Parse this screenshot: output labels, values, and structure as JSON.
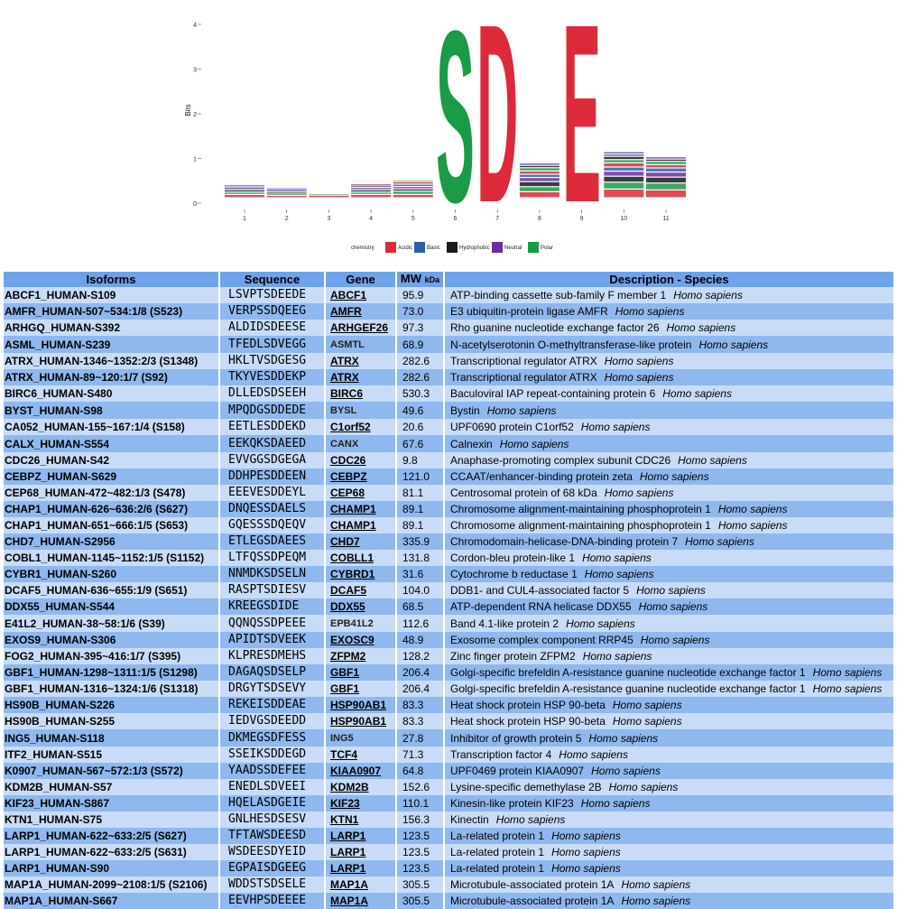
{
  "logo": {
    "y_axis_label": "Bits",
    "y_ticks": [
      "0",
      "1",
      "2",
      "3",
      "4"
    ],
    "x_ticks": [
      "1",
      "2",
      "3",
      "4",
      "5",
      "6",
      "7",
      "8",
      "9",
      "10",
      "11"
    ],
    "big_letters": [
      {
        "position": 6,
        "letter": "S",
        "bits": 3.95,
        "color": "#1a9b47"
      },
      {
        "position": 7,
        "letter": "D",
        "bits": 4.1,
        "color": "#dc2a3a"
      },
      {
        "position": 9,
        "letter": "E",
        "bits": 4.1,
        "color": "#dc2a3a"
      }
    ],
    "legend": {
      "title": "chemistry",
      "items": [
        {
          "label": "Acidic",
          "color": "#dc2a3a"
        },
        {
          "label": "Basic",
          "color": "#2a62a8"
        },
        {
          "label": "Hydrophobic",
          "color": "#1a1a1a"
        },
        {
          "label": "Neutral",
          "color": "#6a2ea0"
        },
        {
          "label": "Polar",
          "color": "#1a9b47"
        }
      ]
    }
  },
  "table": {
    "headers": {
      "isoforms": "Isoforms",
      "sequence": "Sequence",
      "gene": "Gene",
      "mw": "MW",
      "mw_unit": "kDa",
      "description": "Description - Species"
    },
    "rows": [
      {
        "iso": "ABCF1_HUMAN-S109",
        "seq": "LSVPTSDEEDE",
        "gene": "ABCF1",
        "link": true,
        "mw": "95.9",
        "desc": "ATP-binding cassette sub-family F member 1",
        "species": "Homo sapiens"
      },
      {
        "iso": "AMFR_HUMAN-507~534:1/8 (S523)",
        "seq": "VERPSSDQEEG",
        "gene": "AMFR",
        "link": true,
        "mw": "73.0",
        "desc": "E3 ubiquitin-protein ligase AMFR",
        "species": "Homo sapiens"
      },
      {
        "iso": "ARHGQ_HUMAN-S392",
        "seq": "ALDIDSDEESE",
        "gene": "ARHGEF26",
        "link": true,
        "mw": "97.3",
        "desc": "Rho guanine nucleotide exchange factor 26",
        "species": "Homo sapiens"
      },
      {
        "iso": "ASML_HUMAN-S239",
        "seq": "TFEDLSDVEGG",
        "gene": "ASMTL",
        "link": false,
        "mw": "68.9",
        "desc": "N-acetylserotonin O-methyltransferase-like protein",
        "species": "Homo sapiens"
      },
      {
        "iso": "ATRX_HUMAN-1346~1352:2/3 (S1348)",
        "seq": "HKLTVSDGESG",
        "gene": "ATRX",
        "link": true,
        "mw": "282.6",
        "desc": "Transcriptional regulator ATRX",
        "species": "Homo sapiens"
      },
      {
        "iso": "ATRX_HUMAN-89~120:1/7 (S92)",
        "seq": "TKYVESDDEKP",
        "gene": "ATRX",
        "link": true,
        "mw": "282.6",
        "desc": "Transcriptional regulator ATRX",
        "species": "Homo sapiens"
      },
      {
        "iso": "BIRC6_HUMAN-S480",
        "seq": "DLLEDSDSEEH",
        "gene": "BIRC6",
        "link": true,
        "mw": "530.3",
        "desc": "Baculoviral IAP repeat-containing protein 6",
        "species": "Homo sapiens"
      },
      {
        "iso": "BYST_HUMAN-S98",
        "seq": "MPQDGSDDEDE",
        "gene": "BYSL",
        "link": false,
        "mw": "49.6",
        "desc": "Bystin",
        "species": "Homo sapiens"
      },
      {
        "iso": "CA052_HUMAN-155~167:1/4 (S158)",
        "seq": "EETLESDDEKD",
        "gene": "C1orf52",
        "link": true,
        "mw": "20.6",
        "desc": "UPF0690 protein C1orf52",
        "species": "Homo sapiens"
      },
      {
        "iso": "CALX_HUMAN-S554",
        "seq": "EEKQKSDAEED",
        "gene": "CANX",
        "link": false,
        "mw": "67.6",
        "desc": "Calnexin",
        "species": "Homo sapiens"
      },
      {
        "iso": "CDC26_HUMAN-S42",
        "seq": "EVVGGSDGEGA",
        "gene": "CDC26",
        "link": true,
        "mw": "9.8",
        "desc": "Anaphase-promoting complex subunit CDC26",
        "species": "Homo sapiens"
      },
      {
        "iso": "CEBPZ_HUMAN-S629",
        "seq": "DDHPESDDEEN",
        "gene": "CEBPZ",
        "link": true,
        "mw": "121.0",
        "desc": "CCAAT/enhancer-binding protein zeta",
        "species": "Homo sapiens"
      },
      {
        "iso": "CEP68_HUMAN-472~482:1/3 (S478)",
        "seq": "EEEVESDDEYL",
        "gene": "CEP68",
        "link": true,
        "mw": "81.1",
        "desc": "Centrosomal protein of 68 kDa",
        "species": "Homo sapiens"
      },
      {
        "iso": "CHAP1_HUMAN-626~636:2/6 (S627)",
        "seq": "DNQESSDAELS",
        "gene": "CHAMP1",
        "link": true,
        "mw": "89.1",
        "desc": "Chromosome alignment-maintaining phosphoprotein 1",
        "species": "Homo sapiens"
      },
      {
        "iso": "CHAP1_HUMAN-651~666:1/5 (S653)",
        "seq": "GQESSSDQEQV",
        "gene": "CHAMP1",
        "link": true,
        "mw": "89.1",
        "desc": "Chromosome alignment-maintaining phosphoprotein 1",
        "species": "Homo sapiens"
      },
      {
        "iso": "CHD7_HUMAN-S2956",
        "seq": "ETLEGSDAEES",
        "gene": "CHD7",
        "link": true,
        "mw": "335.9",
        "desc": "Chromodomain-helicase-DNA-binding protein 7",
        "species": "Homo sapiens"
      },
      {
        "iso": "COBL1_HUMAN-1145~1152:1/5 (S1152)",
        "seq": "LTFQSSDPEQM",
        "gene": "COBLL1",
        "link": true,
        "mw": "131.8",
        "desc": "Cordon-bleu protein-like 1",
        "species": "Homo sapiens"
      },
      {
        "iso": "CYBR1_HUMAN-S260",
        "seq": "NNMDKSDSELN",
        "gene": "CYBRD1",
        "link": true,
        "mw": "31.6",
        "desc": "Cytochrome b reductase 1",
        "species": "Homo sapiens"
      },
      {
        "iso": "DCAF5_HUMAN-636~655:1/9 (S651)",
        "seq": "RASPTSDIESV",
        "gene": "DCAF5",
        "link": true,
        "mw": "104.0",
        "desc": "DDB1- and CUL4-associated factor 5",
        "species": "Homo sapiens"
      },
      {
        "iso": "DDX55_HUMAN-S544",
        "seq": "KREEGSDIDE",
        "gene": "DDX55",
        "link": true,
        "mw": "68.5",
        "desc": "ATP-dependent RNA helicase DDX55",
        "species": "Homo sapiens"
      },
      {
        "iso": "E41L2_HUMAN-38~58:1/6 (S39)",
        "seq": "QQNQSSDPEEE",
        "gene": "EPB41L2",
        "link": false,
        "mw": "112.6",
        "desc": "Band 4.1-like protein 2",
        "species": "Homo sapiens"
      },
      {
        "iso": "EXOS9_HUMAN-S306",
        "seq": "APIDTSDVEEK",
        "gene": "EXOSC9",
        "link": true,
        "mw": "48.9",
        "desc": "Exosome complex component RRP45",
        "species": "Homo sapiens"
      },
      {
        "iso": "FOG2_HUMAN-395~416:1/7 (S395)",
        "seq": "KLPRESDMEHS",
        "gene": "ZFPM2",
        "link": true,
        "mw": "128.2",
        "desc": "Zinc finger protein ZFPM2",
        "species": "Homo sapiens"
      },
      {
        "iso": "GBF1_HUMAN-1298~1311:1/5 (S1298)",
        "seq": "DAGAQSDSELP",
        "gene": "GBF1",
        "link": true,
        "mw": "206.4",
        "desc": "Golgi-specific brefeldin A-resistance guanine nucleotide exchange factor 1",
        "species": "Homo sapiens"
      },
      {
        "iso": "GBF1_HUMAN-1316~1324:1/6 (S1318)",
        "seq": "DRGYTSDSEVY",
        "gene": "GBF1",
        "link": true,
        "mw": "206.4",
        "desc": "Golgi-specific brefeldin A-resistance guanine nucleotide exchange factor 1",
        "species": "Homo sapiens"
      },
      {
        "iso": "HS90B_HUMAN-S226",
        "seq": "REKEISDDEAE",
        "gene": "HSP90AB1",
        "link": true,
        "mw": "83.3",
        "desc": "Heat shock protein HSP 90-beta",
        "species": "Homo sapiens"
      },
      {
        "iso": "HS90B_HUMAN-S255",
        "seq": "IEDVGSDEEDD",
        "gene": "HSP90AB1",
        "link": true,
        "mw": "83.3",
        "desc": "Heat shock protein HSP 90-beta",
        "species": "Homo sapiens"
      },
      {
        "iso": "ING5_HUMAN-S118",
        "seq": "DKMEGSDFESS",
        "gene": "ING5",
        "link": false,
        "mw": "27.8",
        "desc": "Inhibitor of growth protein 5",
        "species": "Homo sapiens"
      },
      {
        "iso": "ITF2_HUMAN-S515",
        "seq": "SSEIKSDDEGD",
        "gene": "TCF4",
        "link": true,
        "mw": "71.3",
        "desc": "Transcription factor 4",
        "species": "Homo sapiens"
      },
      {
        "iso": "K0907_HUMAN-567~572:1/3 (S572)",
        "seq": "YAADSSDEFEE",
        "gene": "KIAA0907",
        "link": true,
        "mw": "64.8",
        "desc": "UPF0469 protein KIAA0907",
        "species": "Homo sapiens"
      },
      {
        "iso": "KDM2B_HUMAN-S57",
        "seq": "ENEDLSDVEEI",
        "gene": "KDM2B",
        "link": true,
        "mw": "152.6",
        "desc": "Lysine-specific demethylase 2B",
        "species": "Homo sapiens"
      },
      {
        "iso": "KIF23_HUMAN-S867",
        "seq": "HQELASDGEIE",
        "gene": "KIF23",
        "link": true,
        "mw": "110.1",
        "desc": "Kinesin-like protein KIF23",
        "species": "Homo sapiens"
      },
      {
        "iso": "KTN1_HUMAN-S75",
        "seq": "GNLHESDSESV",
        "gene": "KTN1",
        "link": true,
        "mw": "156.3",
        "desc": "Kinectin",
        "species": "Homo sapiens"
      },
      {
        "iso": "LARP1_HUMAN-622~633:2/5 (S627)",
        "seq": "TFTAWSDEESD",
        "gene": "LARP1",
        "link": true,
        "mw": "123.5",
        "desc": "La-related protein 1",
        "species": "Homo sapiens"
      },
      {
        "iso": "LARP1_HUMAN-622~633:2/5 (S631)",
        "seq": "WSDEESDYEID",
        "gene": "LARP1",
        "link": true,
        "mw": "123.5",
        "desc": "La-related protein 1",
        "species": "Homo sapiens"
      },
      {
        "iso": "LARP1_HUMAN-S90",
        "seq": "EGPAISDGEEG",
        "gene": "LARP1",
        "link": true,
        "mw": "123.5",
        "desc": "La-related protein 1",
        "species": "Homo sapiens"
      },
      {
        "iso": "MAP1A_HUMAN-2099~2108:1/5 (S2106)",
        "seq": "WDDSTSDSELE",
        "gene": "MAP1A",
        "link": true,
        "mw": "305.5",
        "desc": "Microtubule-associated protein 1A",
        "species": "Homo sapiens"
      },
      {
        "iso": "MAP1A_HUMAN-S667",
        "seq": "EEVHPSDEEEE",
        "gene": "MAP1A",
        "link": true,
        "mw": "305.5",
        "desc": "Microtubule-associated protein 1A",
        "species": "Homo sapiens"
      }
    ]
  }
}
